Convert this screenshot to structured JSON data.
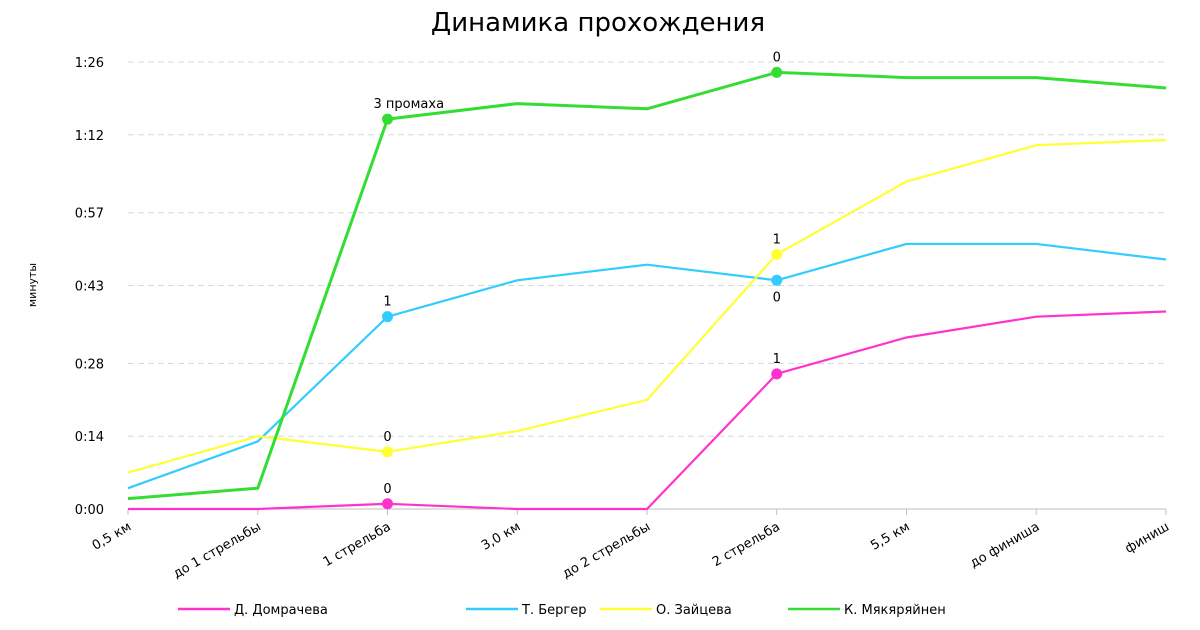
{
  "chart_data": {
    "type": "line",
    "title": "Динамика прохождения",
    "xlabel": "",
    "ylabel": "минуты",
    "y_unit": "seconds",
    "ylim": [
      0,
      86
    ],
    "y_ticks": [
      0,
      14,
      28,
      43,
      57,
      72,
      86
    ],
    "y_tick_labels": [
      "0:00",
      "0:14",
      "0:28",
      "0:43",
      "0:57",
      "1:12",
      "1:26"
    ],
    "grid": true,
    "legend_position": "bottom",
    "categories": [
      "0,5 км",
      "до 1 стрельбы",
      "1 стрельба",
      "3,0 км",
      "до 2 стрельбы",
      "2 стрельба",
      "5,5 км",
      "до финиша",
      "финиш"
    ],
    "series": [
      {
        "name": "Д. Домрачева",
        "color": "#ff33cc",
        "values": [
          0,
          0,
          1,
          0,
          0,
          26,
          33,
          37,
          38
        ],
        "labels": [
          {
            "index": 2,
            "text": "0"
          },
          {
            "index": 5,
            "text": "1"
          }
        ]
      },
      {
        "name": "Т. Бергер",
        "color": "#33ccff",
        "values": [
          4,
          13,
          37,
          44,
          47,
          44,
          51,
          51,
          48
        ],
        "labels": [
          {
            "index": 2,
            "text": "1"
          },
          {
            "index": 5,
            "text": "0"
          }
        ]
      },
      {
        "name": "О. Зайцева",
        "color": "#ffff33",
        "values": [
          7,
          14,
          11,
          15,
          21,
          49,
          63,
          70,
          71
        ],
        "labels": [
          {
            "index": 2,
            "text": "0"
          },
          {
            "index": 5,
            "text": "1"
          }
        ]
      },
      {
        "name": "К. Мякяряйнен",
        "color": "#33dd33",
        "values": [
          2,
          4,
          75,
          78,
          77,
          84,
          83,
          83,
          81
        ],
        "labels": [
          {
            "index": 2,
            "text": "3 промаха"
          },
          {
            "index": 5,
            "text": "0"
          }
        ]
      }
    ]
  }
}
